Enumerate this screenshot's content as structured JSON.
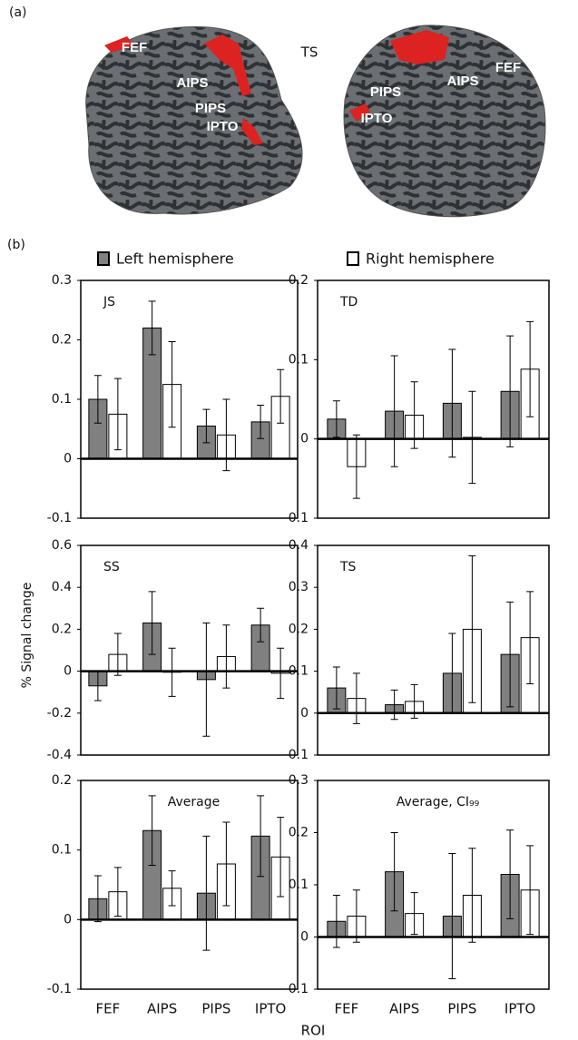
{
  "panel_a": {
    "label": "(a)",
    "brain_labels": [
      "FEF",
      "AIPS",
      "PIPS",
      "IPTO",
      "TS",
      "PIPS",
      "AIPS",
      "FEF",
      "IPTO"
    ]
  },
  "panel_b_label": "(b)",
  "y_label": "% Signal change",
  "x_label": "ROI",
  "chart_data": [
    {
      "type": "bar",
      "title": "JS",
      "categories": [
        null,
        null,
        null,
        null
      ],
      "ylim": [
        -0.1,
        0.3
      ],
      "yticks": [
        -0.1,
        0,
        0.1,
        0.2,
        0.3
      ],
      "series": [
        {
          "name": "Left hemisphere",
          "color": "#808080",
          "values": [
            0.1,
            0.22,
            0.055,
            0.062
          ],
          "errors": [
            0.04,
            0.045,
            0.028,
            0.028
          ]
        },
        {
          "name": "Right hemisphere",
          "color": "#ffffff",
          "values": [
            0.075,
            0.125,
            0.04,
            0.105
          ],
          "errors": [
            0.06,
            0.072,
            0.06,
            0.045
          ]
        }
      ]
    },
    {
      "type": "bar",
      "title": "TD",
      "categories": [
        null,
        null,
        null,
        null
      ],
      "ylim": [
        -0.1,
        0.2
      ],
      "yticks": [
        -0.1,
        0,
        0.1,
        0.2
      ],
      "series": [
        {
          "name": "Left hemisphere",
          "color": "#808080",
          "values": [
            0.025,
            0.035,
            0.045,
            0.06
          ],
          "errors": [
            0.023,
            0.07,
            0.068,
            0.07
          ]
        },
        {
          "name": "Right hemisphere",
          "color": "#ffffff",
          "values": [
            -0.035,
            0.03,
            0.002,
            0.088
          ],
          "errors": [
            0.04,
            0.042,
            0.058,
            0.06
          ]
        }
      ]
    },
    {
      "type": "bar",
      "title": "SS",
      "categories": [
        null,
        null,
        null,
        null
      ],
      "ylim": [
        -0.4,
        0.6
      ],
      "yticks": [
        -0.4,
        -0.2,
        0,
        0.2,
        0.4,
        0.6
      ],
      "series": [
        {
          "name": "Left hemisphere",
          "color": "#808080",
          "values": [
            -0.07,
            0.23,
            -0.04,
            0.22
          ],
          "errors": [
            0.07,
            0.15,
            0.27,
            0.08
          ]
        },
        {
          "name": "Right hemisphere",
          "color": "#ffffff",
          "values": [
            0.08,
            -0.005,
            0.07,
            -0.01
          ],
          "errors": [
            0.1,
            0.115,
            0.15,
            0.12
          ]
        }
      ]
    },
    {
      "type": "bar",
      "title": "TS",
      "categories": [
        null,
        null,
        null,
        null
      ],
      "ylim": [
        -0.1,
        0.4
      ],
      "yticks": [
        -0.1,
        0,
        0.1,
        0.2,
        0.3,
        0.4
      ],
      "series": [
        {
          "name": "Left hemisphere",
          "color": "#808080",
          "values": [
            0.06,
            0.02,
            0.095,
            0.14
          ],
          "errors": [
            0.05,
            0.035,
            0.095,
            0.125
          ]
        },
        {
          "name": "Right hemisphere",
          "color": "#ffffff",
          "values": [
            0.035,
            0.028,
            0.2,
            0.18
          ],
          "errors": [
            0.06,
            0.04,
            0.175,
            0.11
          ]
        }
      ]
    },
    {
      "type": "bar",
      "title": "Average",
      "categories": [
        "FEF",
        "AIPS",
        "PIPS",
        "IPTO"
      ],
      "ylim": [
        -0.1,
        0.2
      ],
      "yticks": [
        -0.1,
        0,
        0.1,
        0.2
      ],
      "series": [
        {
          "name": "Left hemisphere",
          "color": "#808080",
          "values": [
            0.03,
            0.128,
            0.038,
            0.12
          ],
          "errors": [
            0.033,
            0.05,
            0.082,
            0.058
          ]
        },
        {
          "name": "Right hemisphere",
          "color": "#ffffff",
          "values": [
            0.04,
            0.045,
            0.08,
            0.09
          ],
          "errors": [
            0.035,
            0.025,
            0.06,
            0.057
          ]
        }
      ]
    },
    {
      "type": "bar",
      "title": "Average, CI₉₉",
      "categories": [
        "FEF",
        "AIPS",
        "PIPS",
        "IPTO"
      ],
      "ylim": [
        -0.1,
        0.3
      ],
      "yticks": [
        -0.1,
        0,
        0.1,
        0.2,
        0.3
      ],
      "series": [
        {
          "name": "Left hemisphere",
          "color": "#808080",
          "values": [
            0.03,
            0.125,
            0.04,
            0.12
          ],
          "errors": [
            0.05,
            0.075,
            0.12,
            0.085
          ]
        },
        {
          "name": "Right hemisphere",
          "color": "#ffffff",
          "values": [
            0.04,
            0.045,
            0.08,
            0.09
          ],
          "errors": [
            0.05,
            0.04,
            0.09,
            0.085
          ]
        }
      ]
    }
  ]
}
